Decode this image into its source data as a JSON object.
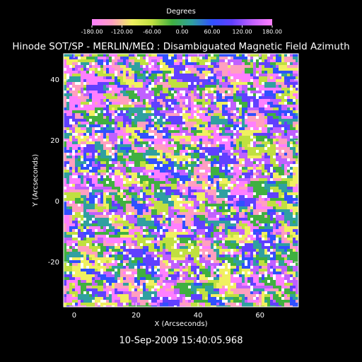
{
  "chart_data": {
    "type": "heatmap",
    "title": "Hinode SOT/SP - MERLIN/MEΩ : Disambiguated Magnetic Field Azimuth",
    "colorbar_label": "Degrees",
    "clim": [
      -180,
      180
    ],
    "colorbar_ticks": [
      {
        "value": -180,
        "label": "-180.00"
      },
      {
        "value": -120,
        "label": "-120.00"
      },
      {
        "value": -60,
        "label": "-60.00"
      },
      {
        "value": 0,
        "label": "0.00"
      },
      {
        "value": 60,
        "label": "60.00"
      },
      {
        "value": 120,
        "label": "120.00"
      },
      {
        "value": 180,
        "label": "180.00"
      }
    ],
    "colormap": [
      "#ff7fff",
      "#ff9fc0",
      "#f0f060",
      "#c0e040",
      "#40b040",
      "#30a0a0",
      "#3050ff",
      "#6040ff",
      "#c060ff",
      "#ff7fff"
    ],
    "xlabel": "X (Arcseconds)",
    "ylabel": "Y (Arcseconds)",
    "xlim": [
      -3.4,
      72.4
    ],
    "ylim": [
      -34.7,
      48.6
    ],
    "xticks": [
      0,
      20,
      40,
      60
    ],
    "yticks": [
      -20,
      0,
      20,
      40
    ],
    "footer": "10-Sep-2009 15:40:05.968"
  }
}
